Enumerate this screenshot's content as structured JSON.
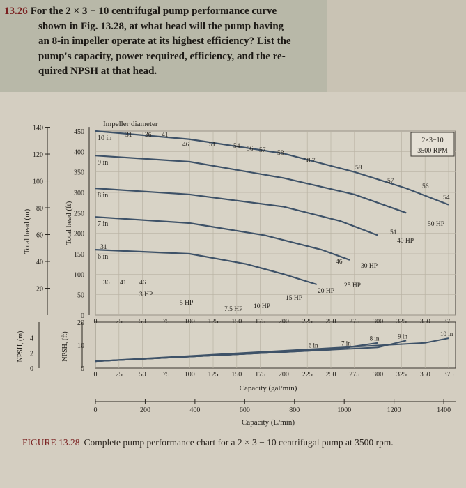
{
  "problem": {
    "number": "13.26",
    "lines": [
      "For the 2 × 3 − 10 centrifugal pump performance curve",
      "shown in Fig. 13.28, at what head will the pump having",
      "an 8-in impeller operate at its highest efficiency? List the",
      "pump's capacity, power required, efficiency, and the re-",
      "quired NPSH at that head."
    ]
  },
  "chart_data": {
    "type": "line",
    "title": "Impeller diameter",
    "pump_label": [
      "2×3−10",
      "3500 RPM"
    ],
    "x_label_gal": "Capacity (gal/min)",
    "x_label_L": "Capacity (L/min)",
    "y_label_m": "Total head (m)",
    "y_label_ft": "Total head (ft)",
    "npsh_label_m": "NPSH, (m)",
    "npsh_label_ft": "NPSH, (ft)",
    "x_ticks_gal": [
      "0",
      "25",
      "50",
      "75",
      "100",
      "125",
      "150",
      "175",
      "200",
      "225",
      "250",
      "275",
      "300",
      "325",
      "350",
      "375"
    ],
    "x_ticks_L": [
      "0",
      "200",
      "400",
      "600",
      "800",
      "1000",
      "1200",
      "1400"
    ],
    "y_ticks_m": [
      "140",
      "120",
      "100",
      "80",
      "60",
      "40",
      "20"
    ],
    "y_ticks_ft": [
      "450",
      "400",
      "350",
      "300",
      "250",
      "200",
      "150",
      "100",
      "50",
      "0"
    ],
    "npsh_ticks_m": [
      "4",
      "2",
      "0"
    ],
    "npsh_ticks_ft": [
      "20",
      "10",
      "0"
    ],
    "xlim": [
      0,
      375
    ],
    "ylim_ft": [
      0,
      450
    ],
    "npsh_ylim_ft": [
      0,
      20
    ],
    "series": [
      {
        "name": "10 in",
        "x": [
          0,
          100,
          200,
          275,
          330,
          375
        ],
        "head_ft": [
          450,
          430,
          395,
          350,
          310,
          270
        ]
      },
      {
        "name": "9 in",
        "x": [
          0,
          100,
          200,
          275,
          330
        ],
        "head_ft": [
          390,
          375,
          335,
          295,
          250
        ]
      },
      {
        "name": "8 in",
        "x": [
          0,
          100,
          200,
          260,
          300
        ],
        "head_ft": [
          310,
          295,
          265,
          230,
          195
        ]
      },
      {
        "name": "7 in",
        "x": [
          0,
          100,
          180,
          240,
          270
        ],
        "head_ft": [
          240,
          225,
          195,
          160,
          135
        ]
      },
      {
        "name": "6 in",
        "x": [
          0,
          100,
          160,
          200,
          235
        ],
        "head_ft": [
          160,
          150,
          125,
          100,
          75
        ]
      }
    ],
    "efficiency_labels": [
      "31",
      "36",
      "41",
      "46",
      "51",
      "54",
      "56",
      "57",
      "58",
      "58.7",
      "58",
      "57",
      "56",
      "54",
      "51",
      "46",
      "31",
      "36",
      "41",
      "46"
    ],
    "power_labels": [
      "3 HP",
      "5 HP",
      "7.5 HP",
      "10 HP",
      "15 HP",
      "20 HP",
      "25 HP",
      "30 HP",
      "40 HP",
      "50 HP"
    ],
    "npsh": [
      {
        "name": "6 in",
        "x": [
          0,
          150,
          235
        ],
        "npsh_ft": [
          3,
          6,
          8
        ]
      },
      {
        "name": "7 in",
        "x": [
          0,
          200,
          270
        ],
        "npsh_ft": [
          3,
          7,
          9
        ]
      },
      {
        "name": "8 in",
        "x": [
          0,
          250,
          300
        ],
        "npsh_ft": [
          3,
          8,
          11
        ]
      },
      {
        "name": "9 in",
        "x": [
          0,
          300,
          330
        ],
        "npsh_ft": [
          3,
          9,
          12
        ]
      },
      {
        "name": "10 in",
        "x": [
          0,
          350,
          375
        ],
        "npsh_ft": [
          3,
          11,
          13
        ]
      }
    ]
  },
  "caption": {
    "label": "FIGURE 13.28",
    "text": "Complete pump performance chart for a 2 × 3 − 10 centrifugal pump at 3500 rpm."
  }
}
